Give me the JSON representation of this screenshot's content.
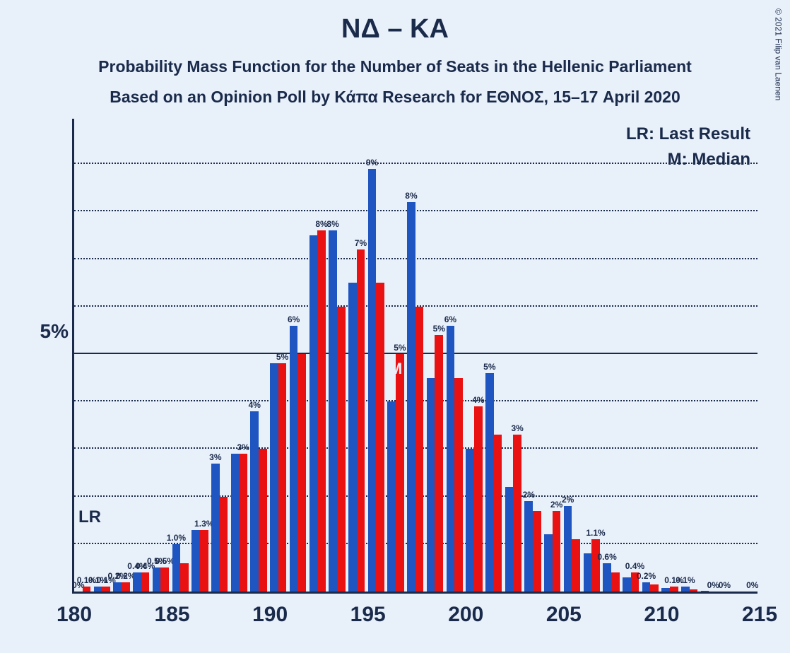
{
  "copyright": "© 2021 Filip van Laenen",
  "title": "ΝΔ – ΚΑ",
  "subtitle": "Probability Mass Function for the Number of Seats in the Hellenic Parliament",
  "subtitle2": "Based on an Opinion Poll by Κάπα Research for ΕΘΝΟΣ, 15–17 April 2020",
  "legend_lr": "LR: Last Result",
  "legend_m": "M: Median",
  "lr_marker": "LR",
  "m_marker": "M",
  "chart": {
    "type": "bar",
    "background_color": "#e8f0fa",
    "axis_color": "#1a2a4a",
    "grid_color": "#1a2a4a",
    "text_color": "#1a2a4a",
    "bar_colors": {
      "blue": "#1f55c0",
      "red": "#e91111"
    },
    "x_start": 180,
    "x_end": 215,
    "x_tick_step": 5,
    "x_ticks": [
      180,
      185,
      190,
      195,
      200,
      205,
      210,
      215
    ],
    "y_max": 10,
    "y_tick_labels": [
      {
        "v": 5,
        "label": "5%"
      }
    ],
    "y_gridlines": [
      1,
      2,
      3,
      4,
      5,
      6,
      7,
      8,
      9
    ],
    "lr_x": 180,
    "median_x": 196,
    "bar_width_ratio": 0.42,
    "label_fontsize": 12,
    "axis_fontsize": 30,
    "title_fontsize": 38,
    "subtitle_fontsize": 23,
    "bars": [
      {
        "x": 180,
        "blue": 0,
        "red": 0,
        "blue_label": "0%",
        "red_label": "0.1%",
        "blue_v": 0,
        "red_v": 0.1
      },
      {
        "x": 181,
        "blue": 0.1,
        "red": 0.1,
        "blue_label": "0.1%",
        "red_label": "0.1%",
        "blue_v": 0.1,
        "red_v": 0.1
      },
      {
        "x": 182,
        "blue": 0.2,
        "red": 0.2,
        "blue_label": "0.2%",
        "red_label": "0.2%",
        "blue_v": 0.2,
        "red_v": 0.2
      },
      {
        "x": 183,
        "blue": 0.4,
        "red": 0.4,
        "blue_label": "0.4%",
        "red_label": "0.4%",
        "blue_v": 0.4,
        "red_v": 0.4
      },
      {
        "x": 184,
        "blue": 0.5,
        "red": 0.5,
        "blue_label": "0.5%",
        "red_label": "0.5%",
        "blue_v": 0.5,
        "red_v": 0.5
      },
      {
        "x": 185,
        "blue": 1.0,
        "red": 0.6,
        "blue_label": "1.0%",
        "red_label": "",
        "blue_v": 1.0,
        "red_v": 0.6
      },
      {
        "x": 186,
        "blue": 1.3,
        "red": 1.3,
        "blue_label": "",
        "red_label": "1.3%",
        "blue_v": 1.3,
        "red_v": 1.3
      },
      {
        "x": 187,
        "blue": 2.7,
        "red": 2.0,
        "blue_label": "3%",
        "red_label": "",
        "blue_v": 2.7,
        "red_v": 2.0
      },
      {
        "x": 188,
        "blue": 2.9,
        "red": 2.9,
        "blue_label": "",
        "red_label": "3%",
        "blue_v": 2.9,
        "red_v": 2.9
      },
      {
        "x": 189,
        "blue": 3.8,
        "red": 3.0,
        "blue_label": "4%",
        "red_label": "",
        "blue_v": 3.8,
        "red_v": 3.0
      },
      {
        "x": 190,
        "blue": 4.8,
        "red": 4.8,
        "blue_label": "",
        "red_label": "5%",
        "blue_v": 4.8,
        "red_v": 4.8
      },
      {
        "x": 191,
        "blue": 5.6,
        "red": 5.0,
        "blue_label": "6%",
        "red_label": "",
        "blue_v": 5.6,
        "red_v": 5.0
      },
      {
        "x": 192,
        "blue": 7.5,
        "red": 7.6,
        "blue_label": "",
        "red_label": "8%",
        "blue_v": 7.5,
        "red_v": 7.6
      },
      {
        "x": 193,
        "blue": 7.6,
        "red": 6.0,
        "blue_label": "8%",
        "red_label": "",
        "blue_v": 7.6,
        "red_v": 6.0
      },
      {
        "x": 194,
        "blue": 6.5,
        "red": 7.2,
        "blue_label": "",
        "red_label": "7%",
        "blue_v": 6.5,
        "red_v": 7.2
      },
      {
        "x": 195,
        "blue": 8.9,
        "red": 6.5,
        "blue_label": "9%",
        "red_label": "",
        "blue_v": 8.9,
        "red_v": 6.5
      },
      {
        "x": 196,
        "blue": 4.0,
        "red": 5.0,
        "blue_label": "",
        "red_label": "5%",
        "blue_v": 4.0,
        "red_v": 5.0
      },
      {
        "x": 197,
        "blue": 8.2,
        "red": 6.0,
        "blue_label": "8%",
        "red_label": "",
        "blue_v": 8.2,
        "red_v": 6.0
      },
      {
        "x": 198,
        "blue": 4.5,
        "red": 5.4,
        "blue_label": "",
        "red_label": "5%",
        "blue_v": 4.5,
        "red_v": 5.4
      },
      {
        "x": 199,
        "blue": 5.6,
        "red": 4.5,
        "blue_label": "6%",
        "red_label": "",
        "blue_v": 5.6,
        "red_v": 4.5
      },
      {
        "x": 200,
        "blue": 3.0,
        "red": 3.9,
        "blue_label": "",
        "red_label": "4%",
        "blue_v": 3.0,
        "red_v": 3.9
      },
      {
        "x": 201,
        "blue": 4.6,
        "red": 3.3,
        "blue_label": "5%",
        "red_label": "",
        "blue_v": 4.6,
        "red_v": 3.3
      },
      {
        "x": 202,
        "blue": 2.2,
        "red": 3.3,
        "blue_label": "",
        "red_label": "3%",
        "blue_v": 2.2,
        "red_v": 3.3
      },
      {
        "x": 203,
        "blue": 1.9,
        "red": 1.7,
        "blue_label": "2%",
        "red_label": "",
        "blue_v": 1.9,
        "red_v": 1.7
      },
      {
        "x": 204,
        "blue": 1.2,
        "red": 1.7,
        "blue_label": "",
        "red_label": "2%",
        "blue_v": 1.2,
        "red_v": 1.7
      },
      {
        "x": 205,
        "blue": 1.8,
        "red": 1.1,
        "blue_label": "2%",
        "red_label": "",
        "blue_v": 1.8,
        "red_v": 1.1
      },
      {
        "x": 206,
        "blue": 0.8,
        "red": 1.1,
        "blue_label": "",
        "red_label": "1.1%",
        "blue_v": 0.8,
        "red_v": 1.1
      },
      {
        "x": 207,
        "blue": 0.6,
        "red": 0.4,
        "blue_label": "0.6%",
        "red_label": "",
        "blue_v": 0.6,
        "red_v": 0.4
      },
      {
        "x": 208,
        "blue": 0.3,
        "red": 0.4,
        "blue_label": "",
        "red_label": "0.4%",
        "blue_v": 0.3,
        "red_v": 0.4
      },
      {
        "x": 209,
        "blue": 0.2,
        "red": 0.15,
        "blue_label": "0.2%",
        "red_label": "",
        "blue_v": 0.2,
        "red_v": 0.15
      },
      {
        "x": 210,
        "blue": 0.08,
        "red": 0.1,
        "blue_label": "",
        "red_label": "0.1%",
        "blue_v": 0.08,
        "red_v": 0.1
      },
      {
        "x": 211,
        "blue": 0.1,
        "red": 0.05,
        "blue_label": "0.1%",
        "red_label": "",
        "blue_v": 0.1,
        "red_v": 0.05
      },
      {
        "x": 212,
        "blue": 0.02,
        "red": 0,
        "blue_label": "",
        "red_label": "0%",
        "blue_v": 0.02,
        "red_v": 0
      },
      {
        "x": 213,
        "blue": 0,
        "red": 0,
        "blue_label": "0%",
        "red_label": "",
        "blue_v": 0,
        "red_v": 0
      },
      {
        "x": 214,
        "blue": 0,
        "red": 0,
        "blue_label": "",
        "red_label": "0%",
        "blue_v": 0,
        "red_v": 0
      }
    ]
  }
}
